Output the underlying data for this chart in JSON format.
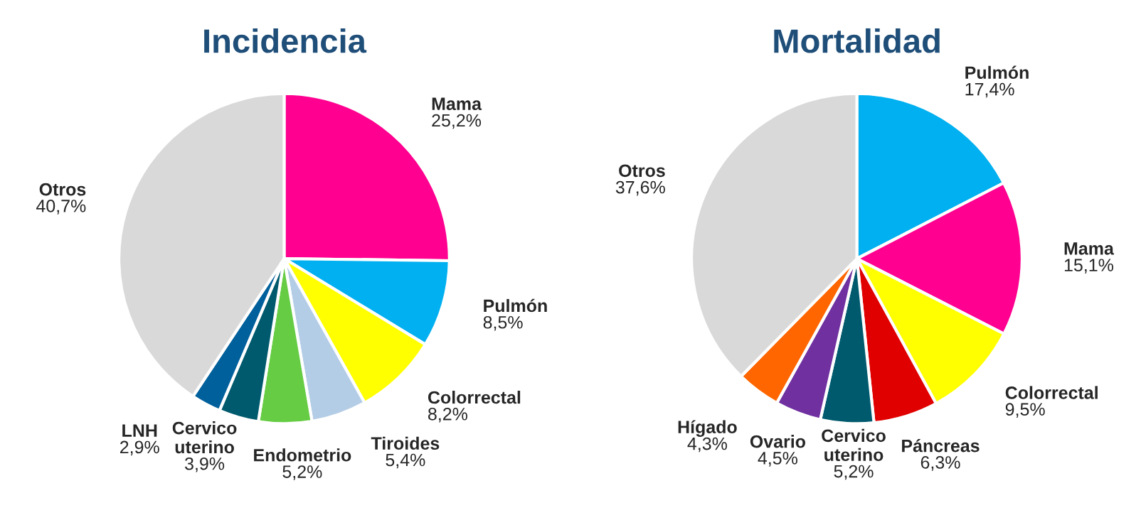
{
  "chart_data": [
    {
      "type": "pie",
      "title": "Incidencia",
      "categories": [
        "Mama",
        "Pulmón",
        "Colorrectal",
        "Tiroides",
        "Endometrio",
        "Cervico\nuterino",
        "LNH",
        "Otros"
      ],
      "values": [
        25.2,
        8.5,
        8.2,
        5.4,
        5.2,
        3.9,
        2.9,
        40.7
      ],
      "value_labels": [
        "25,2%",
        "8,5%",
        "8,2%",
        "5,4%",
        "5,2%",
        "3,9%",
        "2,9%",
        "40,7%"
      ],
      "colors": [
        "#ff0090",
        "#00b0f0",
        "#ffff00",
        "#b4cde6",
        "#66cc44",
        "#005a6e",
        "#00609c",
        "#d9d9d9"
      ],
      "legend": false
    },
    {
      "type": "pie",
      "title": "Mortalidad",
      "categories": [
        "Pulmón",
        "Mama",
        "Colorrectal",
        "Páncreas",
        "Cervico\nuterino",
        "Ovario",
        "Hígado",
        "Otros"
      ],
      "values": [
        17.4,
        15.1,
        9.5,
        6.3,
        5.2,
        4.5,
        4.3,
        37.6
      ],
      "value_labels": [
        "17,4%",
        "15,1%",
        "9,5%",
        "6,3%",
        "5,2%",
        "4,5%",
        "4,3%",
        "37,6%"
      ],
      "colors": [
        "#00b0f0",
        "#ff0090",
        "#ffff00",
        "#e00000",
        "#005a6e",
        "#7030a0",
        "#ff6600",
        "#d9d9d9"
      ],
      "legend": false
    }
  ]
}
